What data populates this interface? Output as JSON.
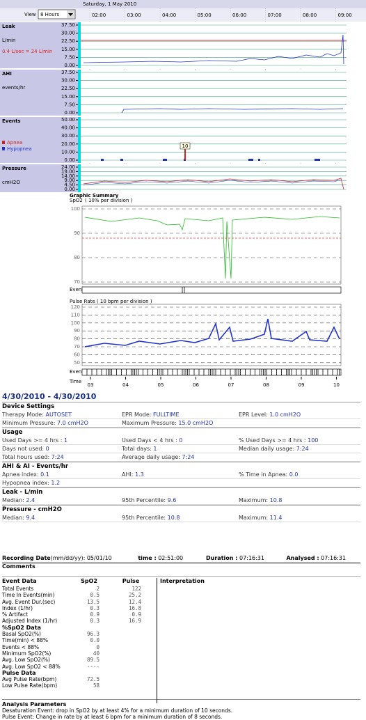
{
  "header": {
    "date": "Saturday, 1 May 2010",
    "view_label": "View",
    "view_value": "8 Hours",
    "times": [
      "02:00",
      "03:00",
      "04:00",
      "05:00",
      "06:00",
      "07:00",
      "08:00",
      "09:00"
    ]
  },
  "panels": [
    {
      "title": "Leak",
      "unit": "L/min",
      "note": "0.4 L/sec = 24 L/min",
      "ticks": [
        "37.50",
        "30.00",
        "22.50",
        "15.00",
        "7.50",
        "0.00"
      ]
    },
    {
      "title": "AHI",
      "unit": "events/hr",
      "ticks": [
        "37.50",
        "30.00",
        "22.50",
        "15.00",
        "7.50",
        "0.00"
      ]
    },
    {
      "title": "Events",
      "legend": [
        "Apnea",
        "Hypopnea"
      ],
      "marker": "10",
      "ticks": [
        "50.00",
        "40.00",
        "30.00",
        "20.00",
        "10.00",
        "0.00"
      ]
    },
    {
      "title": "Pressure",
      "unit": "cmH2O",
      "ticks": [
        "24.00",
        "19.00",
        "14.00",
        "9.00",
        "4.50",
        "0.00"
      ]
    }
  ],
  "summary": {
    "title": "Graphic Summary",
    "spo2_label": "SpO2",
    "spo2_division": "( 10% per division )",
    "spo2_ticks": [
      "100",
      "90",
      "80",
      "70"
    ],
    "events_label": "Events",
    "pulse_label": "Pulse Rate ( 10 bpm per division )",
    "pulse_ticks": [
      "120",
      "110",
      "100",
      "90",
      "80",
      "70",
      "60",
      "50"
    ],
    "time_label": "Time",
    "time_ticks": [
      "03",
      "04",
      "05",
      "06",
      "07",
      "08",
      "09",
      "10"
    ]
  },
  "report": {
    "range": "4/30/2010 - 4/30/2010",
    "sections": [
      {
        "title": "Device Settings",
        "rows": [
          [
            {
              "label": "Therapy Mode:",
              "value": "AUTOSET"
            },
            {
              "label": "EPR Mode:",
              "value": "FULLTIME"
            },
            {
              "label": "EPR Level:",
              "value": "1.0 cmH2O"
            }
          ],
          [
            {
              "label": "Minimum Pressure:",
              "value": "7.0 cmH2O"
            },
            {
              "label": "Maximum Pressure:",
              "value": "15.0 cmH2O"
            }
          ]
        ]
      },
      {
        "title": "Usage",
        "rows": [
          [
            {
              "label": "Used Days >= 4 hrs :",
              "value": "1"
            },
            {
              "label": "Used Days < 4 hrs :",
              "value": "0"
            },
            {
              "label": "% Used Days >= 4 hrs :",
              "value": "100"
            }
          ],
          [
            {
              "label": "Days not used:",
              "value": "0"
            },
            {
              "label": "Total days:",
              "value": "1"
            },
            {
              "label": "Median daily usage:",
              "value": "7:24"
            }
          ],
          [
            {
              "label": "Total hours used:",
              "value": "7:24"
            },
            {
              "label": "Average daily usage:",
              "value": "7:24"
            }
          ]
        ]
      },
      {
        "title": "AHI & AI - Events/hr",
        "rows": [
          [
            {
              "label": "Apnea index:",
              "value": "0.1"
            },
            {
              "label": "AHI:",
              "value": "1.3"
            },
            {
              "label": "% Time in Apnea:",
              "value": "0.0"
            }
          ],
          [
            {
              "label": "Hypopnea index:",
              "value": "1.2"
            }
          ]
        ]
      },
      {
        "title": "Leak - L/min",
        "rows": [
          [
            {
              "label": "Median:",
              "value": "2.4"
            },
            {
              "label": "95th Percentile:",
              "value": "9.6"
            },
            {
              "label": "Maximum:",
              "value": "10.8"
            }
          ]
        ]
      },
      {
        "title": "Pressure - cmH2O",
        "rows": [
          [
            {
              "label": "Median:",
              "value": "9.4"
            },
            {
              "label": "95th Percentile:",
              "value": "10.8"
            },
            {
              "label": "Maximum:",
              "value": "11.4"
            }
          ]
        ]
      }
    ]
  },
  "recording": {
    "fields": [
      {
        "label": "Recording Date",
        "sub": "(mm/dd/yy):",
        "value": "05/01/10"
      },
      {
        "label": "time :",
        "value": "02:51:00"
      },
      {
        "label": "Duration :",
        "value": "07:16:31"
      },
      {
        "label": "Analysed :",
        "value": "07:16:31"
      }
    ],
    "comments": "Comments",
    "table": {
      "headers": [
        "Event Data",
        "SpO2",
        "Pulse",
        "Interpretation"
      ],
      "rows": [
        {
          "label": "Total Events",
          "spo2": "2",
          "pulse": "122"
        },
        {
          "label": "Time In Events(min)",
          "spo2": "0.5",
          "pulse": "25.2"
        },
        {
          "label": "Avg. Event Dur.(sec)",
          "spo2": "13.5",
          "pulse": "12.4"
        },
        {
          "label": "Index (1/hr)",
          "spo2": "0.3",
          "pulse": "16.8"
        },
        {
          "label": "% Artifact",
          "spo2": "0.9",
          "pulse": "0.9"
        },
        {
          "label": "Adjusted Index (1/hr)",
          "spo2": "0.3",
          "pulse": "16.9"
        },
        {
          "heading": "%SpO2 Data"
        },
        {
          "label": "Basal SpO2(%)",
          "spo2": "96.3"
        },
        {
          "label": "Time(min) < 88%",
          "spo2": "0.0"
        },
        {
          "label": "Events < 88%",
          "spo2": "0"
        },
        {
          "label": "Minimum SpO2(%)",
          "spo2": "40"
        },
        {
          "label": "Avg. Low SpO2(%)",
          "spo2": "89.5"
        },
        {
          "label": "Avg. Low SpO2 < 88%",
          "spo2": "----"
        },
        {
          "heading": "Pulse Data"
        },
        {
          "label": "Avg Pulse Rate(bpm)",
          "spo2": "72.5"
        },
        {
          "label": "Low Pulse Rate(bpm)",
          "spo2": "58"
        }
      ]
    },
    "analysis": {
      "title": "Analysis Parameters",
      "lines": [
        "Desaturation Event: drop in SpO2 by at least 4% for a minimum duration of 10 seconds.",
        "Pulse Event: Change in rate by at least 6 bpm for a minimum duration of 8 seconds."
      ]
    }
  }
}
